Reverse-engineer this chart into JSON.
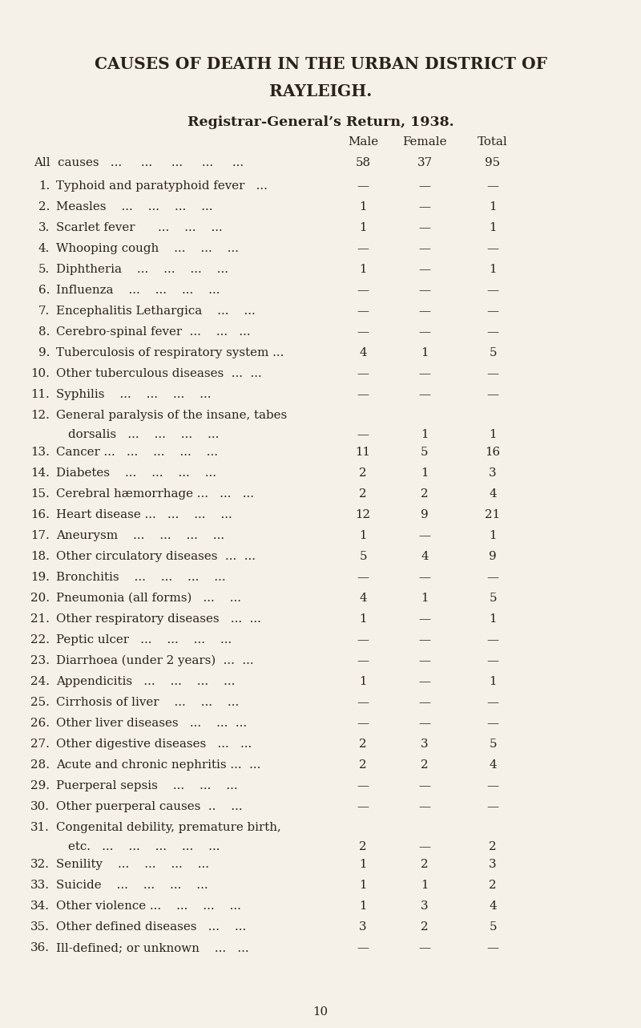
{
  "title1": "CAUSES OF DEATH IN THE URBAN DISTRICT OF",
  "title2": "RAYLEIGH.",
  "subtitle": "Registrar-General’s Return, 1938.",
  "all_causes": {
    "label": "All causes   ...     ...     ...     ...     ...",
    "male": "58",
    "female": "37",
    "total": "95"
  },
  "rows": [
    {
      "num": "1.",
      "label": "Typhoid and paratyphoid fever   ...",
      "male": "—",
      "female": "—",
      "total": "—",
      "multiline": false
    },
    {
      "num": "2.",
      "label": "Measles    ...    ...    ...    ...",
      "male": "1",
      "female": "—",
      "total": "1",
      "multiline": false
    },
    {
      "num": "3.",
      "label": "Scarlet fever      ...    ...    ...",
      "male": "1",
      "female": "—",
      "total": "1",
      "multiline": false
    },
    {
      "num": "4.",
      "label": "Whooping cough    ...    ...    ...",
      "male": "—",
      "female": "—",
      "total": "—",
      "multiline": false
    },
    {
      "num": "5.",
      "label": "Diphtheria    ...    ...    ...    ...",
      "male": "1",
      "female": "—",
      "total": "1",
      "multiline": false
    },
    {
      "num": "6.",
      "label": "Influenza    ...    ...    ...    ...",
      "male": "—",
      "female": "—",
      "total": "—",
      "multiline": false
    },
    {
      "num": "7.",
      "label": "Encephalitis Lethargica    ...    ...",
      "male": "—",
      "female": "—",
      "total": "—",
      "multiline": false
    },
    {
      "num": "8.",
      "label": "Cerebro-spinal fever  ...    ...   ...",
      "male": "—",
      "female": "—",
      "total": "—",
      "multiline": false
    },
    {
      "num": "9.",
      "label": "Tuberculosis of respiratory system ...",
      "male": "4",
      "female": "1",
      "total": "5",
      "multiline": false
    },
    {
      "num": "10.",
      "label": "Other tuberculous diseases  ...  ...",
      "male": "—",
      "female": "—",
      "total": "—",
      "multiline": false
    },
    {
      "num": "11.",
      "label": "Syphilis    ...    ...    ...    ...",
      "male": "—",
      "female": "—",
      "total": "—",
      "multiline": false
    },
    {
      "num": "12.",
      "label": "General paralysis of the insane, tabes",
      "label2": "    dorsalis   ...    ...    ...    ...",
      "male": "—",
      "female": "1",
      "total": "1",
      "multiline": true
    },
    {
      "num": "13.",
      "label": "Cancer ...   ...    ...    ...    ...",
      "male": "11",
      "female": "5",
      "total": "16",
      "multiline": false
    },
    {
      "num": "14.",
      "label": "Diabetes    ...    ...    ...    ...",
      "male": "2",
      "female": "1",
      "total": "3",
      "multiline": false
    },
    {
      "num": "15.",
      "label": "Cerebral hæmorrhage ...   ...   ...",
      "male": "2",
      "female": "2",
      "total": "4",
      "multiline": false
    },
    {
      "num": "16.",
      "label": "Heart disease ...   ...    ...    ...",
      "male": "12",
      "female": "9",
      "total": "21",
      "multiline": false
    },
    {
      "num": "17.",
      "label": "Aneurysm    ...    ...    ...    ...",
      "male": "1",
      "female": "—",
      "total": "1",
      "multiline": false
    },
    {
      "num": "18.",
      "label": "Other circulatory diseases  ...  ...",
      "male": "5",
      "female": "4",
      "total": "9",
      "multiline": false
    },
    {
      "num": "19.",
      "label": "Bronchitis    ...    ...    ...    ...",
      "male": "—",
      "female": "—",
      "total": "—",
      "multiline": false
    },
    {
      "num": "20.",
      "label": "Pneumonia (all forms)   ...    ...",
      "male": "4",
      "female": "1",
      "total": "5",
      "multiline": false
    },
    {
      "num": "21.",
      "label": "Other respiratory diseases   ...  ...",
      "male": "1",
      "female": "—",
      "total": "1",
      "multiline": false
    },
    {
      "num": "22.",
      "label": "Peptic ulcer   ...    ...    ...    ...",
      "male": "—",
      "female": "—",
      "total": "—",
      "multiline": false
    },
    {
      "num": "23.",
      "label": "Diarrhoea (under 2 years)  ...  ...",
      "male": "—",
      "female": "—",
      "total": "—",
      "multiline": false
    },
    {
      "num": "24.",
      "label": "Appendicitis   ...    ...    ...    ...",
      "male": "1",
      "female": "—",
      "total": "1",
      "multiline": false
    },
    {
      "num": "25.",
      "label": "Cirrhosis of liver    ...    ...    ...",
      "male": "—",
      "female": "—",
      "total": "—",
      "multiline": false
    },
    {
      "num": "26.",
      "label": "Other liver diseases   ...    ...  ...",
      "male": "—",
      "female": "—",
      "total": "—",
      "multiline": false
    },
    {
      "num": "27.",
      "label": "Other digestive diseases   ...   ...",
      "male": "2",
      "female": "3",
      "total": "5",
      "multiline": false
    },
    {
      "num": "28.",
      "label": "Acute and chronic nephritis ...  ...",
      "male": "2",
      "female": "2",
      "total": "4",
      "multiline": false
    },
    {
      "num": "29.",
      "label": "Puerperal sepsis    ...    ...    ...",
      "male": "—",
      "female": "—",
      "total": "—",
      "multiline": false
    },
    {
      "num": "30.",
      "label": "Other puerperal causes  ..    ...",
      "male": "—",
      "female": "—",
      "total": "—",
      "multiline": false
    },
    {
      "num": "31.",
      "label": "Congenital debility, premature birth,",
      "label2": "    etc.   ...    ...    ...    ...    ...",
      "male": "2",
      "female": "—",
      "total": "2",
      "multiline": true
    },
    {
      "num": "32.",
      "label": "Senility    ...    ...    ...    ...",
      "male": "1",
      "female": "2",
      "total": "3",
      "multiline": false
    },
    {
      "num": "33.",
      "label": "Suicide    ...    ...    ...    ...",
      "male": "1",
      "female": "1",
      "total": "2",
      "multiline": false
    },
    {
      "num": "34.",
      "label": "Other violence ...    ...    ...    ...",
      "male": "1",
      "female": "3",
      "total": "4",
      "multiline": false
    },
    {
      "num": "35.",
      "label": "Other defined diseases   ...    ...",
      "male": "3",
      "female": "2",
      "total": "5",
      "multiline": false
    },
    {
      "num": "36.",
      "label": "Ill-defined; or unknown    ...   ...",
      "male": "—",
      "female": "—",
      "total": "—",
      "multiline": false
    }
  ],
  "page_number": "10",
  "bg_color": "#f5f0e8",
  "text_color": "#2a2218"
}
